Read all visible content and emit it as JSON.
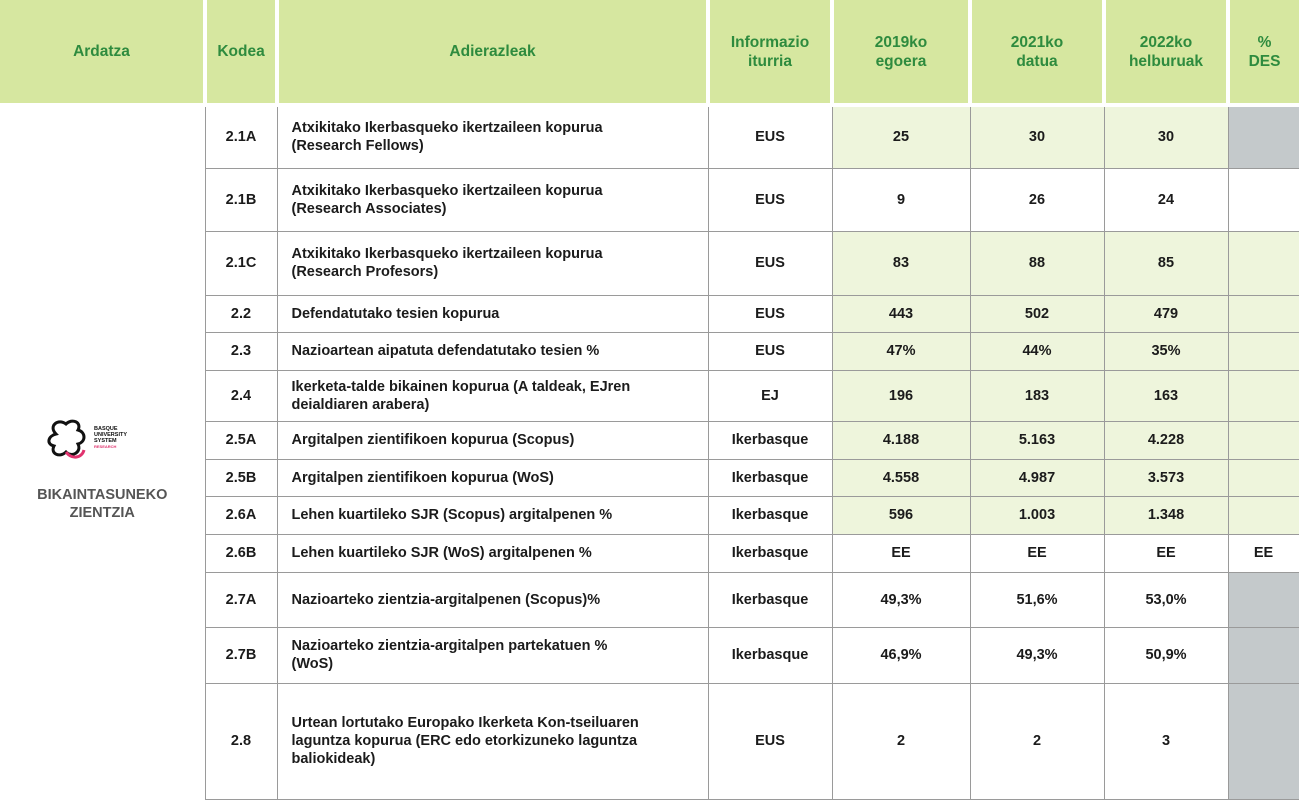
{
  "header": {
    "columns": [
      "Ardatza",
      "Kodea",
      "Adierazleak",
      "Informazio iturria",
      "2019ko egoera",
      "2021ko datua",
      "2022ko helburuak",
      "% DES"
    ]
  },
  "axis": {
    "label": "BIKAINTASUNEKO ZIENTZIA",
    "logo_text": [
      "BASQUE",
      "UNIVERSITY",
      "SYSTEM",
      "RESEARCH"
    ]
  },
  "table": {
    "rows": [
      [
        "2.1A",
        "Atxikitako Ikerbasqueko ikertzaileen kopurua (Research Fellows)",
        "EUS",
        "25",
        "30",
        "30"
      ],
      [
        "2.1B",
        "Atxikitako Ikerbasqueko ikertzaileen kopurua (Research Associates)",
        "EUS",
        "9",
        "26",
        "24"
      ],
      [
        "2.1C",
        "Atxikitako Ikerbasqueko ikertzaileen kopurua (Research Profesors)",
        "EUS",
        "83",
        "88",
        "85"
      ],
      [
        "2.2",
        "Defendatutako tesien kopurua",
        "EUS",
        "443",
        "502",
        "479"
      ],
      [
        "2.3",
        "Nazioartean aipatuta defendatutako tesien %",
        "EUS",
        "47%",
        "44%",
        "35%"
      ],
      [
        "2.4",
        "Ikerketa-talde bikainen kopurua (A taldeak, EJren deialdiaren arabera)",
        "EJ",
        "196",
        "183",
        "163"
      ],
      [
        "2.5A",
        "Argitalpen zientifikoen kopurua (Scopus)",
        "Ikerbasque",
        "4.188",
        "5.163",
        "4.228"
      ],
      [
        "2.5B",
        "Argitalpen zientifikoen kopurua (WoS)",
        "Ikerbasque",
        "4.558",
        "4.987",
        "3.573"
      ],
      [
        "2.6A",
        "Lehen kuartileko SJR (Scopus) argitalpenen %",
        "Ikerbasque",
        "596",
        "1.003",
        "1.348"
      ],
      [
        "2.6B",
        "Lehen kuartileko SJR (WoS) argitalpenen %",
        "Ikerbasque",
        "EE",
        "EE",
        "EE",
        "EE"
      ],
      [
        "2.7A",
        "Nazioarteko zientzia-argitalpenen (Scopus)%",
        "Ikerbasque",
        "49,3%",
        "51,6%",
        "53,0%"
      ],
      [
        "2.7B",
        "Nazioarteko zientzia-argitalpen partekatuen % (WoS)",
        "Ikerbasque",
        "46,9%",
        "49,3%",
        "50,9%"
      ],
      [
        "2.8",
        "Urtean lortutako Europako Ikerketa Kon-tseiluaren laguntza kopurua (ERC edo etorkizuneko laguntza baliokideak)",
        "EUS",
        "2",
        "2",
        "3"
      ]
    ]
  }
}
